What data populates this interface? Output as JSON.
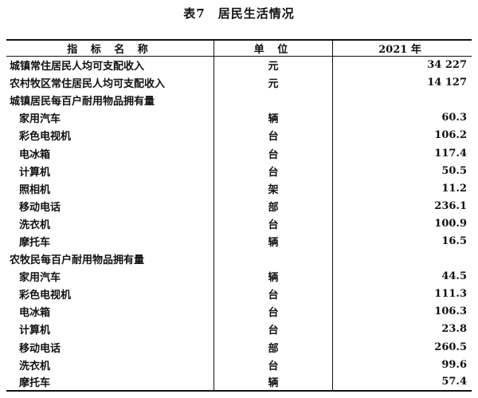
{
  "title": "表7　居民生活情况",
  "headers": [
    "指 标 名 称",
    "单 位",
    "2021 年"
  ],
  "rows": [
    {
      "name": "城镇常住居民人均可支配收入",
      "unit": "元",
      "value": "34 227",
      "level": 0
    },
    {
      "name": "农村牧区常住居民人均可支配收入",
      "unit": "元",
      "value": "14 127",
      "level": 0
    },
    {
      "name": "城镇居民每百户耐用物品拥有量",
      "unit": "",
      "value": "",
      "level": 0
    },
    {
      "name": "家用汽车",
      "unit": "辆",
      "value": "60.3",
      "level": 1
    },
    {
      "name": "彩色电视机",
      "unit": "台",
      "value": "106.2",
      "level": 1
    },
    {
      "name": "电冰箱",
      "unit": "台",
      "value": "117.4",
      "level": 1
    },
    {
      "name": "计算机",
      "unit": "台",
      "value": "50.5",
      "level": 1
    },
    {
      "name": "照相机",
      "unit": "架",
      "value": "11.2",
      "level": 1
    },
    {
      "name": "移动电话",
      "unit": "部",
      "value": "236.1",
      "level": 1
    },
    {
      "name": "洗衣机",
      "unit": "台",
      "value": "100.9",
      "level": 1
    },
    {
      "name": "摩托车",
      "unit": "辆",
      "value": "16.5",
      "level": 1
    },
    {
      "name": "农牧民每百户耐用物品拥有量",
      "unit": "",
      "value": "",
      "level": 0
    },
    {
      "name": "家用汽车",
      "unit": "辆",
      "value": "44.5",
      "level": 1
    },
    {
      "name": "彩色电视机",
      "unit": "台",
      "value": "111.3",
      "level": 1
    },
    {
      "name": "电冰箱",
      "unit": "台",
      "value": "106.3",
      "level": 1
    },
    {
      "name": "计算机",
      "unit": "台",
      "value": "23.8",
      "level": 1
    },
    {
      "name": "移动电话",
      "unit": "部",
      "value": "260.5",
      "level": 1
    },
    {
      "name": "洗衣机",
      "unit": "台",
      "value": "99.6",
      "level": 1
    },
    {
      "name": "摩托车",
      "unit": "辆",
      "value": "57.4",
      "level": 1
    }
  ]
}
